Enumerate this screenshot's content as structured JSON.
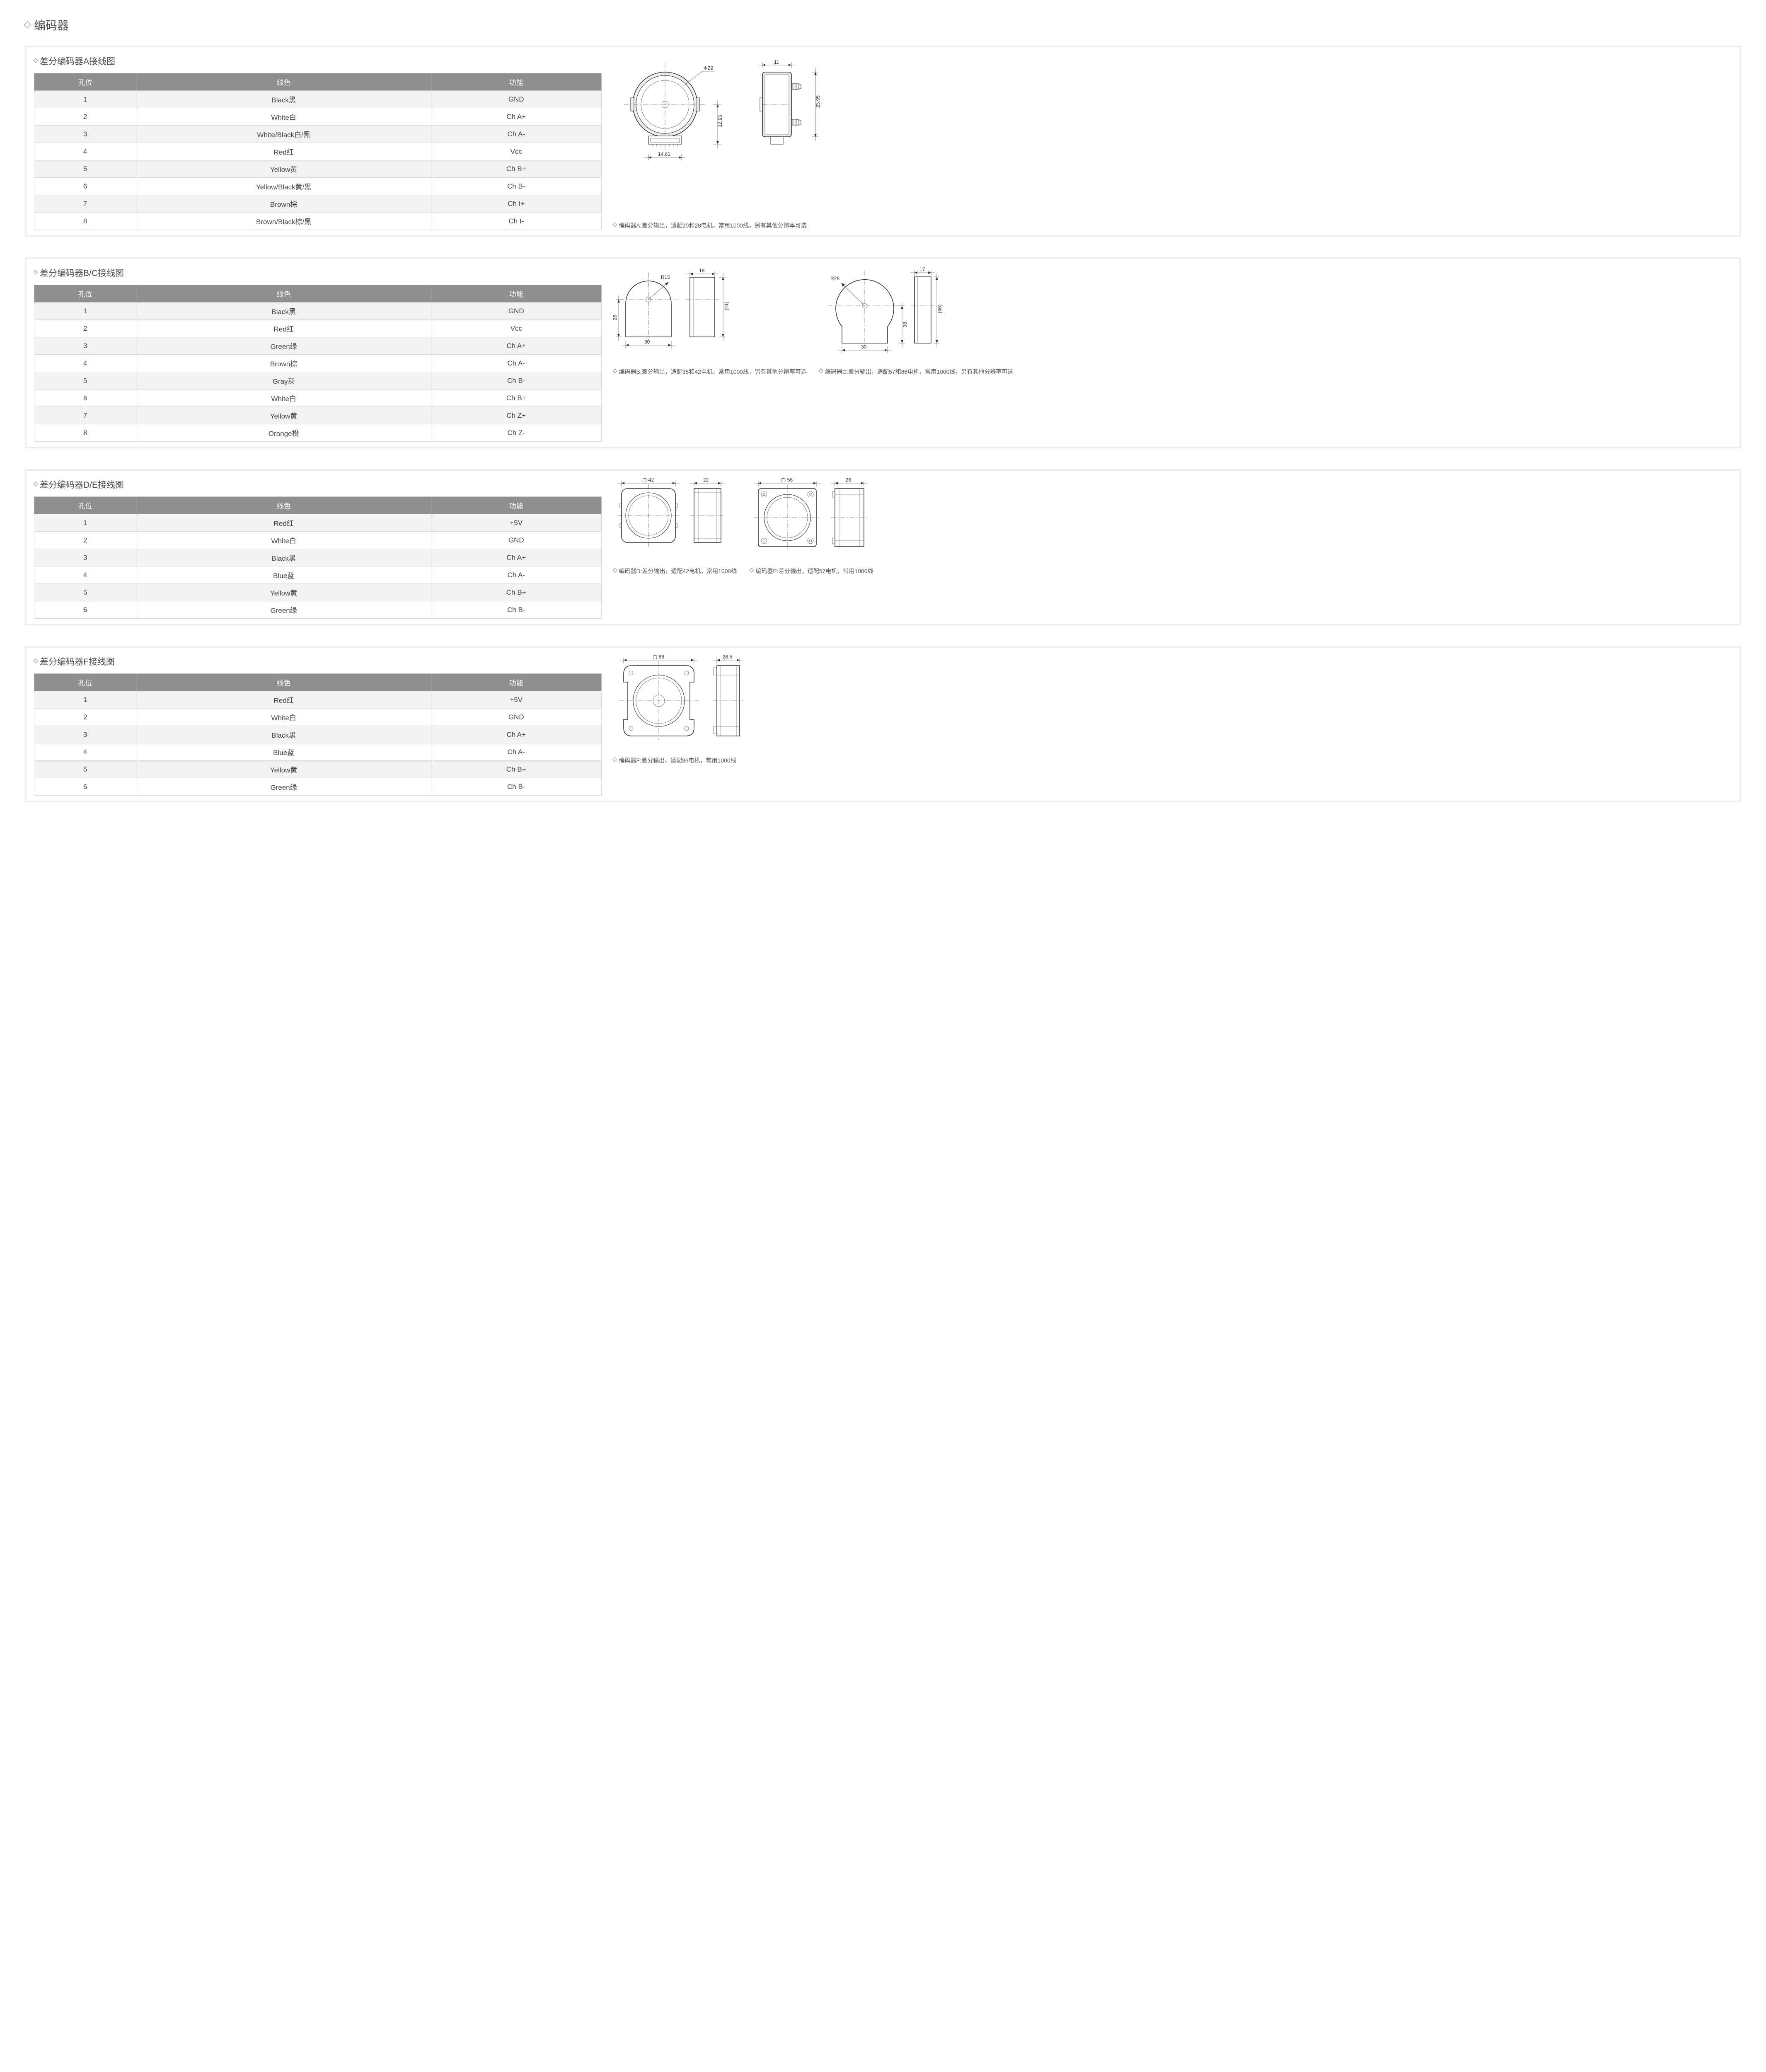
{
  "page_title": "编码器",
  "table_headers": {
    "pos": "孔位",
    "wire": "线色",
    "func": "功能"
  },
  "colors": {
    "page_bg": "#ffffff",
    "section_border": "#eeeeee",
    "table_header_bg": "#8e8e8e",
    "table_header_fg": "#ffffff",
    "table_border": "#d9d9d9",
    "row_odd_bg": "#f2f2f2",
    "row_even_bg": "#ffffff",
    "text": "#4a4a4a",
    "drawing_stroke": "#333333",
    "drawing_fill_light": "#ededed"
  },
  "sections": {
    "A": {
      "title": "差分编码器A接线图",
      "rows": [
        [
          "1",
          "Black黑",
          "GND"
        ],
        [
          "2",
          "White白",
          "Ch A+"
        ],
        [
          "3",
          "White/Black白/黑",
          "Ch A-"
        ],
        [
          "4",
          "Red红",
          "Vcc"
        ],
        [
          "5",
          "Yellow黄",
          "Ch B+"
        ],
        [
          "6",
          "Yellow/Black黄/黑",
          "Ch B-"
        ],
        [
          "7",
          "Brown棕",
          "Ch I+"
        ],
        [
          "8",
          "Brown/Black棕/黑",
          "Ch I-"
        ]
      ],
      "dims": {
        "dia": "Φ22",
        "h1": "23.95",
        "h2": "12.95",
        "w_bottom": "14.61",
        "side_w": "11"
      },
      "caption": "编码器A:差分输出，适配20和28电机，常用1000线，另有其他分辨率可选"
    },
    "BC": {
      "title": "差分编码器B/C接线图",
      "rows": [
        [
          "1",
          "Black黑",
          "GND"
        ],
        [
          "2",
          "Red红",
          "Vcc"
        ],
        [
          "3",
          "Green绿",
          "Ch A+"
        ],
        [
          "4",
          "Brown棕",
          "Ch A-"
        ],
        [
          "5",
          "Gray灰",
          "Ch B-"
        ],
        [
          "6",
          "White白",
          "Ch B+"
        ],
        [
          "7",
          "Yellow黄",
          "Ch Z+"
        ],
        [
          "8",
          "Orange橙",
          "Ch Z-"
        ]
      ],
      "B": {
        "dims": {
          "r": "R15",
          "w_side": "19",
          "h_side_paren": "(41)",
          "h_front": "26",
          "w_bottom": "30"
        },
        "caption": "编码器B:差分输出，适配35和42电机，常用1000线，另有其他分辨率可选"
      },
      "C": {
        "dims": {
          "r": "R28",
          "w_side": "17",
          "h_side_paren": "(66)",
          "h_front": "38",
          "w_bottom": "30"
        },
        "caption": "编码器C:差分输出，适配57和86电机，常用1000线，另有其他分辨率可选"
      }
    },
    "DE": {
      "title": "差分编码器D/E接线图",
      "rows": [
        [
          "1",
          "Red红",
          "+5V"
        ],
        [
          "2",
          "White白",
          "GND"
        ],
        [
          "3",
          "Black黑",
          "Ch A+"
        ],
        [
          "4",
          "Blue蓝",
          "Ch A-"
        ],
        [
          "5",
          "Yellow黄",
          "Ch B+"
        ],
        [
          "6",
          "Green绿",
          "Ch B-"
        ]
      ],
      "D": {
        "dims": {
          "sq": "▢ 42",
          "side_w": "22"
        },
        "caption": "编码器D:差分输出，适配42电机，常用1000线"
      },
      "E": {
        "dims": {
          "sq": "▢ 56",
          "side_w": "26"
        },
        "caption": "编码器E:差分输出，适配57电机，常用1000线"
      }
    },
    "F": {
      "title": "差分编码器F接线图",
      "rows": [
        [
          "1",
          "Red红",
          "+5V"
        ],
        [
          "2",
          "White白",
          "GND"
        ],
        [
          "3",
          "Black黑",
          "Ch A+"
        ],
        [
          "4",
          "Blue蓝",
          "Ch A-"
        ],
        [
          "5",
          "Yellow黄",
          "Ch B+"
        ],
        [
          "6",
          "Green绿",
          "Ch B-"
        ]
      ],
      "dims": {
        "sq": "▢ 86",
        "side_w": "26.5"
      },
      "caption": "编码器F:差分输出，适配86电机，常用1000线"
    }
  }
}
